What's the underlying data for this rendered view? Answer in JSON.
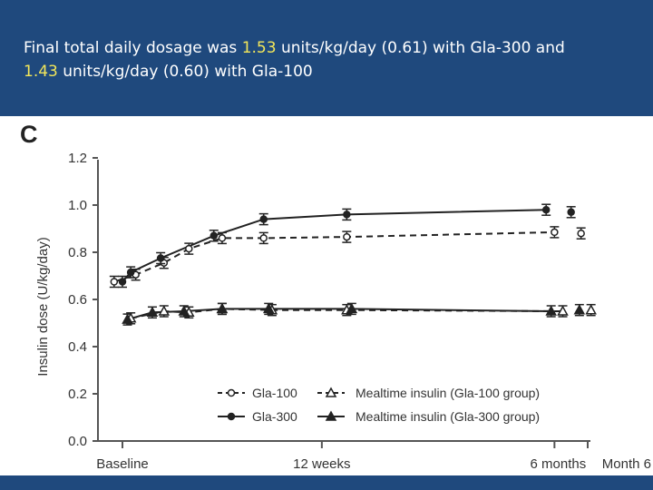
{
  "header": {
    "line1_pre": "Final total daily dosage was ",
    "line1_hl": "1.53",
    "line1_post": " units/kg/day (0.61) with Gla-300 and",
    "line2_hl": "1.43",
    "line2_post": " units/kg/day (0.60) with Gla-100"
  },
  "colors": {
    "header_bg": "#1f497d",
    "highlight": "#f2e65a",
    "series": "#222222"
  },
  "chart_data": {
    "type": "line",
    "panel_label": "C",
    "ylabel": "Insulin dose (U/kg/day)",
    "xlabel": "",
    "ylim": [
      0,
      1.2
    ],
    "yticks": [
      "0.0",
      "0.2",
      "0.4",
      "0.6",
      "0.8",
      "1.0",
      "1.2"
    ],
    "xticks": [
      {
        "label": "Baseline",
        "week": 0
      },
      {
        "label": "12 weeks",
        "week": 12
      },
      {
        "label": "6 months",
        "week": 26
      },
      {
        "label": "Month 6",
        "week": 28
      }
    ],
    "xlim": [
      0,
      28
    ],
    "series": [
      {
        "name": "Gla-100",
        "line": "dashed",
        "marker": "circle-open",
        "x": [
          -0.5,
          0.8,
          2.5,
          4,
          6,
          8.5,
          13.5,
          26
        ],
        "y": [
          0.675,
          0.705,
          0.755,
          0.815,
          0.86,
          0.86,
          0.865,
          0.885
        ],
        "end_x": 27.6,
        "end_y": 0.88
      },
      {
        "name": "Mealtime insulin (Gla-100 group)",
        "line": "dashed",
        "marker": "triangle-open",
        "x": [
          0.5,
          2.5,
          4,
          6,
          9,
          13.5,
          26.5
        ],
        "y": [
          0.52,
          0.55,
          0.545,
          0.56,
          0.555,
          0.555,
          0.55
        ],
        "end_x": 28.2,
        "end_y": 0.555
      },
      {
        "name": "Gla-300",
        "line": "solid",
        "marker": "circle-filled",
        "x": [
          0,
          0.5,
          2.3,
          5.5,
          8.5,
          13.5,
          25.5
        ],
        "y": [
          0.675,
          0.715,
          0.775,
          0.87,
          0.94,
          0.96,
          0.98
        ],
        "end_x": 27,
        "end_y": 0.97
      },
      {
        "name": "Mealtime insulin (Gla-300 group)",
        "line": "solid",
        "marker": "triangle-filled",
        "x": [
          0.3,
          1.8,
          3.7,
          6,
          8.8,
          13.8,
          25.8
        ],
        "y": [
          0.515,
          0.545,
          0.55,
          0.56,
          0.56,
          0.56,
          0.55
        ],
        "end_x": 27.5,
        "end_y": 0.555
      }
    ],
    "legend_position": "bottom-right"
  }
}
